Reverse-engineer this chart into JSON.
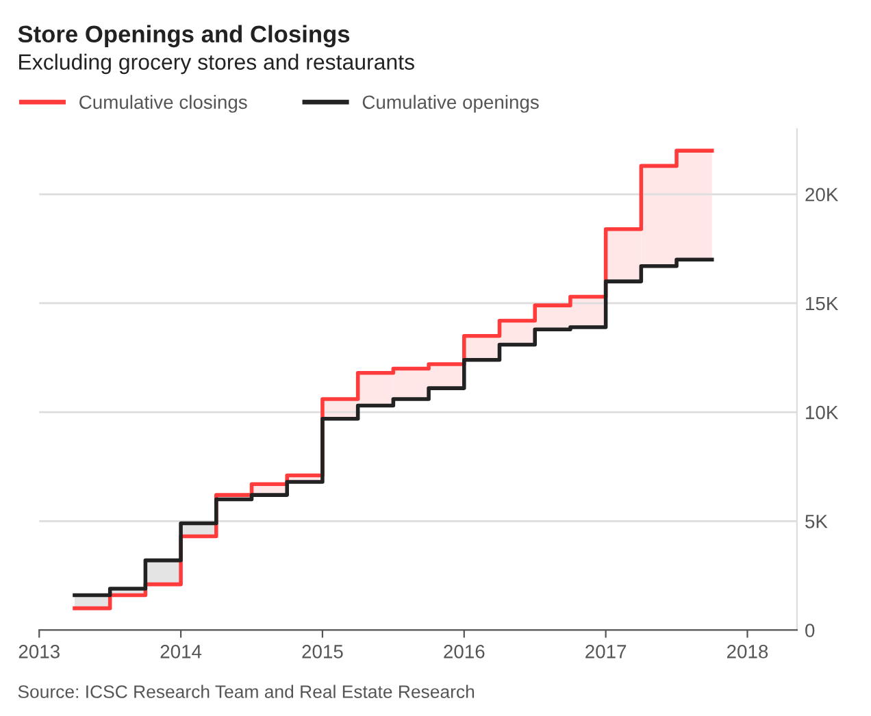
{
  "chart_data": {
    "type": "step",
    "title": "Store Openings and Closings",
    "subtitle": "Excluding grocery stores and restaurants",
    "x": [
      2013.25,
      2013.5,
      2013.75,
      2014,
      2014.25,
      2014.5,
      2014.75,
      2015,
      2015.25,
      2015.5,
      2015.75,
      2016,
      2016.25,
      2016.5,
      2016.75,
      2017,
      2017.25,
      2017.5,
      2017.75
    ],
    "series": [
      {
        "name": "Cumulative closings",
        "color": "#ff3b3b",
        "values": [
          1000,
          1600,
          2100,
          4300,
          6200,
          6700,
          7100,
          10600,
          11800,
          12000,
          12200,
          13500,
          14200,
          14900,
          15300,
          18400,
          21300,
          22000,
          22000
        ],
        "lower": [
          null,
          null,
          null,
          null,
          6000,
          6200,
          6800,
          9700,
          10300,
          10600,
          11100,
          12400,
          13100,
          13800,
          13900,
          16000,
          16700,
          17000,
          17000
        ],
        "upper": [
          null,
          null,
          null,
          null,
          6200,
          6700,
          7100,
          10600,
          11800,
          12000,
          12200,
          13500,
          14200,
          14900,
          15300,
          18400,
          21300,
          22000,
          22000
        ]
      },
      {
        "name": "Cumulative openings",
        "color": "#222222",
        "values": [
          1600,
          1900,
          3200,
          4900,
          6000,
          6200,
          6800,
          9700,
          10300,
          10600,
          11100,
          12400,
          13100,
          13800,
          13900,
          16000,
          16700,
          17000,
          17000
        ],
        "lower": [
          1000,
          1600,
          2100,
          4300,
          4300,
          null,
          null,
          null,
          null,
          null,
          null,
          null,
          null,
          null,
          null,
          null,
          null,
          null,
          null
        ],
        "upper": [
          1600,
          1900,
          3200,
          4900,
          4900,
          null,
          null,
          null,
          null,
          null,
          null,
          null,
          null,
          null,
          null,
          null,
          null,
          null,
          null
        ]
      }
    ],
    "xlim": [
      2013,
      2018.35
    ],
    "xticks": [
      2013,
      2014,
      2015,
      2016,
      2017,
      2018
    ],
    "ylim": [
      0,
      23000
    ],
    "yticks": [
      {
        "value": 0,
        "label": "0"
      },
      {
        "value": 5000,
        "label": "5K"
      },
      {
        "value": 10000,
        "label": "10K"
      },
      {
        "value": 15000,
        "label": "15K"
      },
      {
        "value": 20000,
        "label": "20K"
      }
    ],
    "grid": "y",
    "legend": "top left",
    "line_style": "solid",
    "marker": "none",
    "annotations": [
      "Source: ICSC Research Team and Real Estate Research"
    ]
  }
}
